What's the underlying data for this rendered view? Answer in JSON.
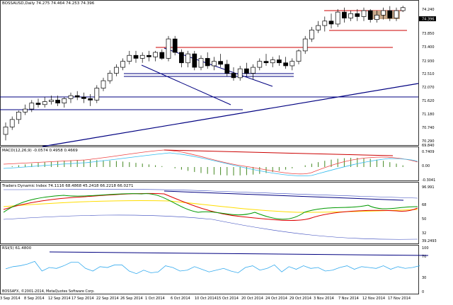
{
  "main": {
    "header": "BOSSAUSD,Daily  74.275 74.464 74.253 74.396",
    "price_labels": [
      "74.240",
      "73.850",
      "73.400",
      "72.930",
      "72.510",
      "72.070",
      "71.620",
      "71.180",
      "70.740",
      "70.290",
      "69.840"
    ],
    "current_price": "74.396"
  },
  "macd": {
    "header": "MACD(12,26,9) -0.0574 0.4958 0.4669",
    "labels": [
      "0.7409",
      "0.00",
      "-0.3041"
    ]
  },
  "tdi": {
    "header": "Traders Dynamic Index 74.1116 68.4868 45.2418 66.2218 66.0271",
    "labels": [
      "96.991",
      "68",
      "50",
      "32",
      "39.2493"
    ]
  },
  "rsi": {
    "header": "RSI(5) 61.4800",
    "labels": [
      "100",
      "70",
      "30",
      "0"
    ]
  },
  "footer": {
    "copyright": "BOSSAFX, ©2001-2014, MetaQuotes Software Corp.",
    "dates": [
      "3 Sep 2014",
      "8 Sep 2014",
      "12 Sep 2014",
      "17 Sep 2014",
      "22 Sep 2014",
      "26 Sep 2014",
      "1 Oct 2014",
      "6 Oct 2014",
      "10 Oct 2014",
      "15 Oct 2014",
      "20 Oct 2014",
      "24 Oct 2014",
      "29 Oct 2014",
      "3 Nov 2014",
      "7 Nov 2014",
      "12 Nov 2014",
      "17 Nov 2014"
    ]
  },
  "colors": {
    "hline_blue": "#000080",
    "hline_red": "#cc0000",
    "box_fill": "#c8a88a",
    "macd_line": "#ee4444",
    "macd_signal": "#33bbee",
    "macd_hist": "#448822",
    "tdi_green": "#009900",
    "tdi_red": "#dd0000",
    "tdi_yellow": "#ffdd00",
    "tdi_band": "#3344bb",
    "rsi_line": "#33aaee"
  },
  "candles": [
    [
      70.15,
      70.55,
      69.95,
      70.4
    ],
    [
      70.4,
      70.75,
      70.3,
      70.65
    ],
    [
      70.65,
      70.95,
      70.5,
      70.9
    ],
    [
      70.9,
      71.15,
      70.8,
      71.0
    ],
    [
      71.0,
      71.3,
      70.9,
      71.2
    ],
    [
      71.2,
      71.35,
      71.05,
      71.15
    ],
    [
      71.15,
      71.4,
      71.05,
      71.25
    ],
    [
      71.25,
      71.45,
      71.15,
      71.3
    ],
    [
      71.3,
      71.45,
      71.1,
      71.2
    ],
    [
      71.2,
      71.4,
      71.05,
      71.35
    ],
    [
      71.35,
      71.55,
      71.2,
      71.45
    ],
    [
      71.45,
      71.6,
      71.3,
      71.4
    ],
    [
      71.4,
      71.55,
      71.2,
      71.35
    ],
    [
      71.35,
      71.5,
      71.1,
      71.3
    ],
    [
      71.3,
      71.8,
      71.2,
      71.7
    ],
    [
      71.7,
      72.05,
      71.6,
      71.95
    ],
    [
      71.95,
      72.3,
      71.85,
      72.2
    ],
    [
      72.2,
      72.5,
      72.1,
      72.4
    ],
    [
      72.4,
      72.7,
      72.3,
      72.6
    ],
    [
      72.6,
      72.95,
      72.5,
      72.8
    ],
    [
      72.8,
      72.95,
      72.55,
      72.7
    ],
    [
      72.7,
      72.9,
      72.55,
      72.8
    ],
    [
      72.8,
      72.95,
      72.6,
      72.75
    ],
    [
      72.75,
      72.95,
      72.6,
      72.9
    ],
    [
      72.9,
      73.0,
      72.65,
      72.7
    ],
    [
      72.7,
      73.45,
      72.6,
      73.35
    ],
    [
      73.35,
      73.45,
      72.8,
      72.9
    ],
    [
      72.9,
      73.0,
      72.4,
      72.55
    ],
    [
      72.55,
      72.95,
      72.4,
      72.85
    ],
    [
      72.85,
      72.95,
      72.3,
      72.4
    ],
    [
      72.4,
      72.8,
      72.3,
      72.7
    ],
    [
      72.7,
      72.9,
      72.35,
      72.45
    ],
    [
      72.45,
      72.75,
      72.3,
      72.6
    ],
    [
      72.6,
      72.85,
      72.4,
      72.5
    ],
    [
      72.5,
      72.65,
      72.1,
      72.2
    ],
    [
      72.2,
      72.4,
      71.95,
      72.05
    ],
    [
      72.05,
      72.45,
      71.95,
      72.35
    ],
    [
      72.35,
      72.55,
      72.1,
      72.2
    ],
    [
      72.2,
      72.5,
      72.0,
      72.4
    ],
    [
      72.4,
      72.7,
      72.3,
      72.6
    ],
    [
      72.6,
      72.85,
      72.45,
      72.55
    ],
    [
      72.55,
      72.75,
      72.4,
      72.65
    ],
    [
      72.65,
      72.8,
      72.45,
      72.55
    ],
    [
      72.55,
      72.75,
      72.35,
      72.45
    ],
    [
      72.45,
      72.7,
      72.3,
      72.6
    ],
    [
      72.6,
      73.0,
      72.5,
      72.95
    ],
    [
      72.95,
      73.45,
      72.85,
      73.35
    ],
    [
      73.35,
      73.75,
      73.25,
      73.65
    ],
    [
      73.65,
      73.95,
      73.55,
      73.8
    ],
    [
      73.8,
      74.1,
      73.6,
      73.95
    ],
    [
      73.95,
      74.2,
      73.7,
      73.85
    ],
    [
      73.85,
      74.35,
      73.75,
      74.25
    ],
    [
      74.25,
      74.4,
      73.9,
      74.05
    ],
    [
      74.05,
      74.3,
      73.95,
      74.2
    ],
    [
      74.2,
      74.35,
      73.95,
      74.1
    ],
    [
      74.1,
      74.4,
      73.95,
      74.3
    ],
    [
      74.3,
      74.35,
      73.9,
      74.0
    ],
    [
      74.0,
      74.3,
      73.9,
      74.15
    ],
    [
      74.15,
      74.4,
      74.0,
      74.3
    ],
    [
      74.3,
      74.45,
      73.95,
      74.05
    ],
    [
      74.05,
      74.4,
      73.95,
      74.3
    ],
    [
      74.3,
      74.46,
      74.25,
      74.4
    ]
  ],
  "rsi_values": [
    55,
    60,
    62,
    66,
    72,
    50,
    58,
    56,
    62,
    70,
    70,
    56,
    50,
    60,
    58,
    64,
    64,
    50,
    44,
    52,
    46,
    48,
    62,
    58,
    50,
    52,
    60,
    54,
    48,
    52,
    56,
    50,
    46,
    58,
    62,
    52,
    56,
    64,
    48,
    60,
    54,
    62,
    56,
    58,
    50,
    52,
    58,
    62,
    54,
    60,
    58,
    56,
    62,
    54,
    60,
    56,
    58,
    62
  ]
}
